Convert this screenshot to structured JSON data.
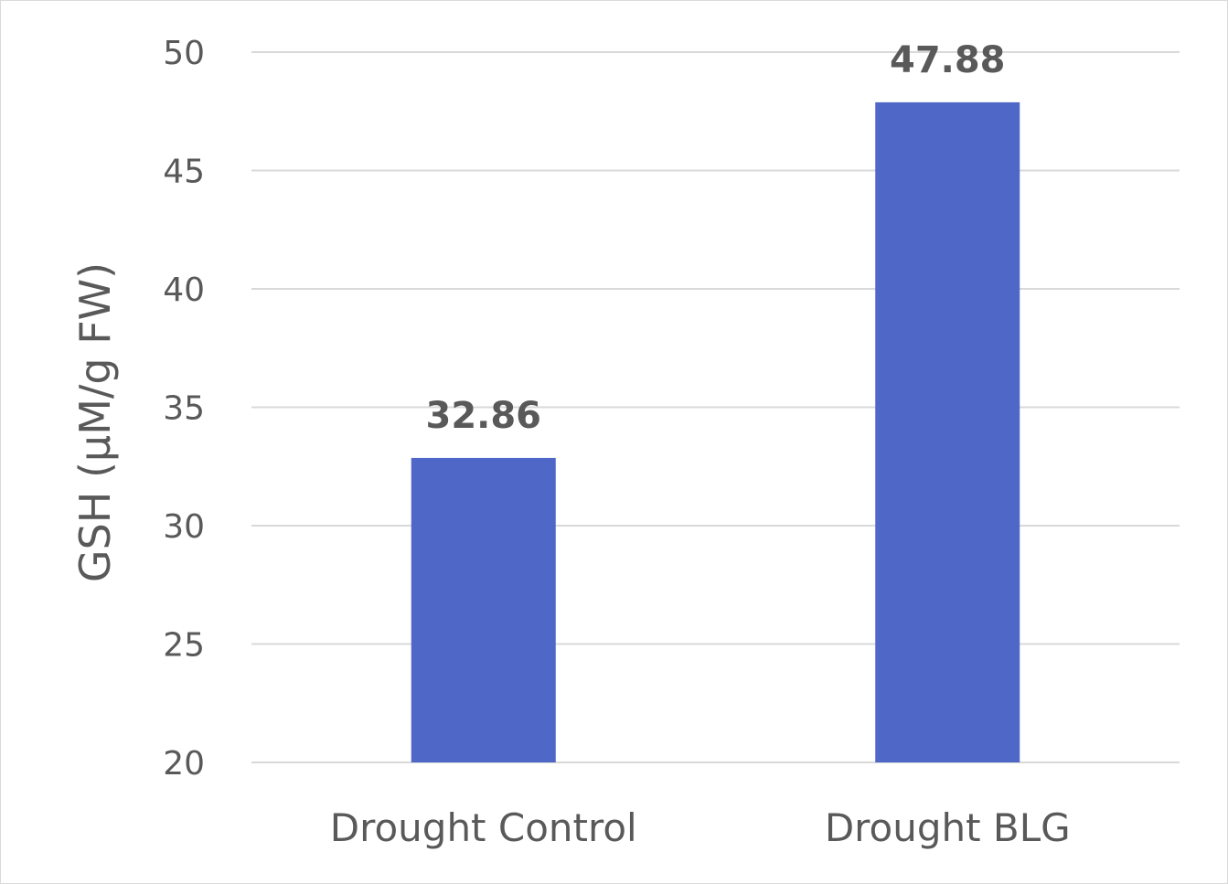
{
  "chart_data": {
    "type": "bar",
    "title": "",
    "xlabel": "",
    "ylabel": "GSH (µM/g FW)",
    "categories": [
      "Drought Control",
      "Drought BLG"
    ],
    "values": [
      32.86,
      47.88
    ],
    "data_labels": [
      "32.86",
      "47.88"
    ],
    "ylim": [
      20,
      50
    ],
    "yticks": [
      20,
      25,
      30,
      35,
      40,
      45,
      50
    ],
    "grid": true,
    "legend": "none",
    "bar_color": "#4F67C6",
    "grid_color": "#d9d9d9",
    "text_color": "#595959"
  }
}
